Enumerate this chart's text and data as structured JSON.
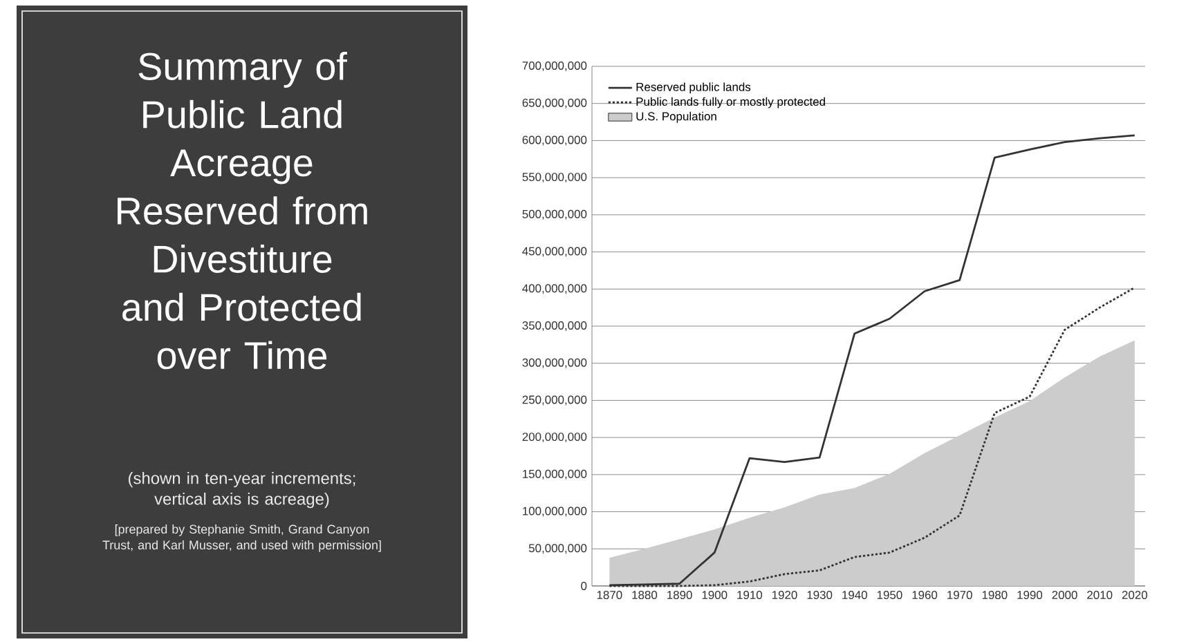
{
  "chart_data": {
    "type": "line",
    "title": "Summary of Public Land Acreage Reserved from Divestiture and Protected over Time",
    "subtitle": "(shown in ten-year increments; vertical axis is acreage)",
    "annotations": [
      "[prepared by Stephanie Smith, Grand Canyon Trust, and Karl Musser, and used with permission]"
    ],
    "x": [
      1870,
      1880,
      1890,
      1900,
      1910,
      1920,
      1930,
      1940,
      1950,
      1960,
      1970,
      1980,
      1990,
      2000,
      2010,
      2020
    ],
    "series": [
      {
        "name": "Reserved public lands",
        "color": "#333333",
        "line_style": "solid",
        "values": [
          1000000,
          2000000,
          3000000,
          45000000,
          172000000,
          167000000,
          173000000,
          340000000,
          360000000,
          397000000,
          412000000,
          577000000,
          588000000,
          598000000,
          603000000,
          607000000
        ]
      },
      {
        "name": "Public lands fully or mostly protected",
        "color": "#333333",
        "line_style": "dotted",
        "values": [
          0,
          0,
          0,
          1000000,
          6000000,
          16000000,
          21000000,
          39000000,
          45000000,
          65000000,
          95000000,
          233000000,
          255000000,
          345000000,
          375000000,
          402000000
        ]
      },
      {
        "name": "U.S. Population",
        "type": "area",
        "color": "#cccccc",
        "values": [
          38000000,
          50000000,
          63000000,
          76000000,
          92000000,
          106000000,
          123000000,
          132000000,
          151000000,
          179000000,
          203000000,
          227000000,
          249000000,
          281000000,
          309000000,
          331000000
        ]
      }
    ],
    "xlim": [
      1865,
      2023
    ],
    "xticks": [
      1870,
      1880,
      1890,
      1900,
      1910,
      1920,
      1930,
      1940,
      1950,
      1960,
      1970,
      1980,
      1990,
      2000,
      2010,
      2020
    ],
    "ylim": [
      0,
      700000000
    ],
    "yticks": [
      {
        "value": 0,
        "label": "0"
      },
      {
        "value": 50000000,
        "label": "50,000,000"
      },
      {
        "value": 100000000,
        "label": "100,000,000"
      },
      {
        "value": 150000000,
        "label": "150,000,000"
      },
      {
        "value": 200000000,
        "label": "200,000,000"
      },
      {
        "value": 250000000,
        "label": "250,000,000"
      },
      {
        "value": 300000000,
        "label": "300,000,000"
      },
      {
        "value": 350000000,
        "label": "350,000,000"
      },
      {
        "value": 400000000,
        "label": "400,000,000"
      },
      {
        "value": 450000000,
        "label": "450,000,000"
      },
      {
        "value": 500000000,
        "label": "500,000,000"
      },
      {
        "value": 550000000,
        "label": "550,000,000"
      },
      {
        "value": 600000000,
        "label": "600,000,000"
      },
      {
        "value": 650000000,
        "label": "650,000,000"
      },
      {
        "value": 700000000,
        "label": "700,000,000"
      }
    ],
    "grid": "y",
    "legend": "top left",
    "marker": "none"
  }
}
